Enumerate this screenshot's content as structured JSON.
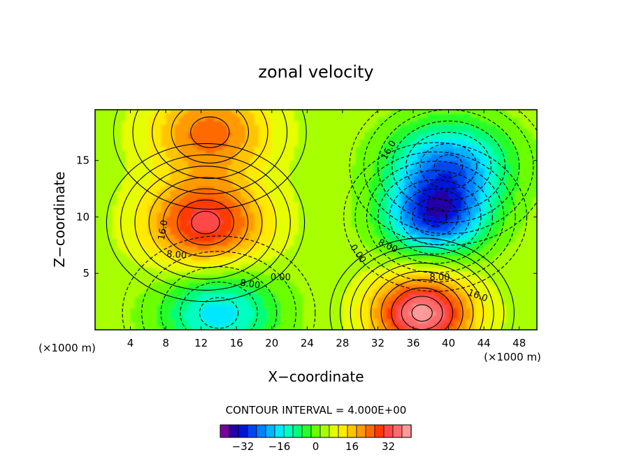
{
  "chart_data": {
    "type": "contour",
    "title": "zonal velocity",
    "xlabel": "X−coordinate",
    "ylabel": "Z−coordinate",
    "x_units_left": "(×1000 m)",
    "x_units_right": "(×1000 m)",
    "xlim": [
      0,
      50
    ],
    "ylim": [
      0,
      19.5
    ],
    "xticks": [
      4,
      8,
      12,
      16,
      20,
      24,
      28,
      32,
      36,
      40,
      44,
      48
    ],
    "xtick_labels": [
      "4",
      "8",
      "12",
      "16",
      "20",
      "24",
      "28",
      "32",
      "36",
      "40",
      "44",
      "48"
    ],
    "yticks": [
      5,
      10,
      15
    ],
    "ytick_labels": [
      "5",
      "10",
      "15"
    ],
    "contour_interval_text": "CONTOUR INTERVAL = 4.000E+00",
    "contour_interval": 4,
    "negative_contours": "dashed",
    "features": [
      {
        "type": "max",
        "x": 12.5,
        "z": 9.5,
        "value": 28
      },
      {
        "type": "max",
        "x": 37,
        "z": 1.5,
        "value": 36
      },
      {
        "type": "min",
        "x": 38.5,
        "z": 10,
        "value": -32
      },
      {
        "type": "min",
        "x": 40,
        "z": 14.5,
        "value": -28
      },
      {
        "type": "min",
        "x": 14,
        "z": 1.5,
        "value": -20
      },
      {
        "type": "max",
        "x": 13,
        "z": 17.5,
        "value": 20
      }
    ],
    "contour_labels": [
      {
        "text": "16.0",
        "x": 8,
        "z": 8.8,
        "rotate": -80
      },
      {
        "text": "8.00",
        "x": 9.2,
        "z": 6.4,
        "rotate": 5
      },
      {
        "text": "8.00",
        "x": 17.5,
        "z": 3.8,
        "rotate": 8
      },
      {
        "text": "0.00",
        "x": 21,
        "z": 4.4,
        "rotate": 0
      },
      {
        "text": "0.00",
        "x": 29.5,
        "z": 6.6,
        "rotate": 55
      },
      {
        "text": "8.00",
        "x": 33,
        "z": 7.2,
        "rotate": 25
      },
      {
        "text": "16.0",
        "x": 33.5,
        "z": 15.8,
        "rotate": -60
      },
      {
        "text": "8.00",
        "x": 39,
        "z": 4.4,
        "rotate": 0
      },
      {
        "text": "16.0",
        "x": 43.2,
        "z": 2.8,
        "rotate": 20
      }
    ],
    "colorbar": {
      "ticks": [
        -32,
        -16,
        0,
        16,
        32
      ],
      "tick_labels": [
        "−32",
        "−16",
        "0",
        "16",
        "32"
      ],
      "colors": [
        "#7a009e",
        "#2400a6",
        "#0014d8",
        "#0046f0",
        "#0080ff",
        "#00b4ff",
        "#00e8ff",
        "#00ffc0",
        "#00ff78",
        "#28ff28",
        "#6cff00",
        "#a8ff00",
        "#e6ff00",
        "#ffea00",
        "#ffc400",
        "#ff9a00",
        "#ff6a00",
        "#ff3a00",
        "#ff4848",
        "#ff6a6a",
        "#ff9a9a"
      ]
    }
  }
}
